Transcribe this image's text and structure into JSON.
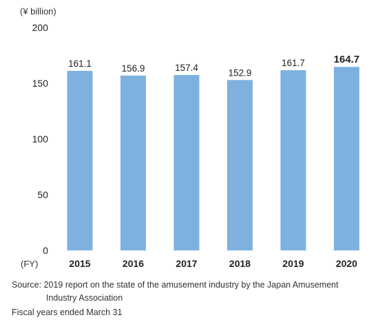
{
  "chart_data": {
    "type": "bar",
    "unit_label": "(¥ billion)",
    "x_axis_prefix": "(FY)",
    "categories": [
      "2015",
      "2016",
      "2017",
      "2018",
      "2019",
      "2020"
    ],
    "values": [
      161.1,
      156.9,
      157.4,
      152.9,
      161.7,
      164.7
    ],
    "value_labels": [
      "161.1",
      "156.9",
      "157.4",
      "152.9",
      "161.7",
      "164.7"
    ],
    "highlight_index": 5,
    "yticks": [
      "0",
      "50",
      "100",
      "150",
      "200"
    ],
    "ylim": [
      0,
      200
    ],
    "grid": false,
    "bar_color": "#7fb1e0"
  },
  "notes": {
    "source_line1": "Source: 2019 report on the state of the amusement industry by the Japan Amusement",
    "source_line2": "Industry Association",
    "fiscal": "Fiscal years ended March 31"
  }
}
